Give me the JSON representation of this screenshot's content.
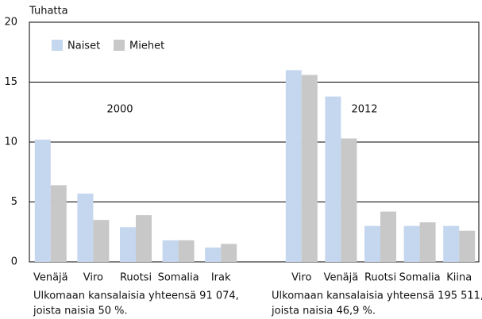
{
  "chart_data": {
    "type": "bar",
    "y_label": "Tuhatta",
    "ylim": [
      0,
      20
    ],
    "yticks": [
      0,
      5,
      10,
      15,
      20
    ],
    "grid": true,
    "legend": [
      {
        "name": "Naiset",
        "color": "#c5d7ee"
      },
      {
        "name": "Miehet",
        "color": "#c8c8c8"
      }
    ],
    "panels": [
      {
        "label": "2000",
        "categories": [
          "Venäjä",
          "Viro",
          "Ruotsi",
          "Somalia",
          "Irak"
        ],
        "series": [
          {
            "values": [
              10.2,
              5.7,
              2.9,
              1.8,
              1.2
            ]
          },
          {
            "values": [
              6.4,
              3.5,
              3.9,
              1.8,
              1.5
            ]
          }
        ],
        "note": [
          "Ulkomaan kansalaisia yhteensä 91 074,",
          "joista naisia 50 %."
        ]
      },
      {
        "label": "2012",
        "categories": [
          "Viro",
          "Venäjä",
          "Ruotsi",
          "Somalia",
          "Kiina"
        ],
        "series": [
          {
            "values": [
              16.0,
              13.8,
              3.0,
              3.0,
              3.0
            ]
          },
          {
            "values": [
              15.6,
              10.3,
              4.2,
              3.3,
              2.6
            ]
          }
        ],
        "note": [
          "Ulkomaan kansalaisia yhteensä 195 511,",
          "joista naisia 46,9 %."
        ]
      }
    ]
  }
}
